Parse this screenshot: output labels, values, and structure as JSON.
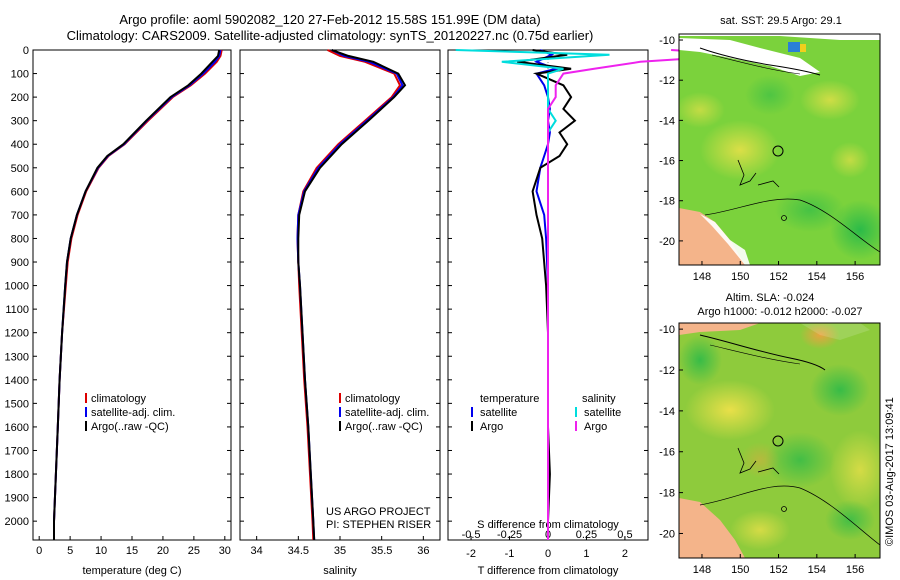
{
  "header": {
    "line1": "Argo profile: aoml 5902082_120 27-Feb-2012 15.58S 151.99E (DM data)",
    "line2": "Climatology: CARS2009. Satellite-adjusted climatology: synTS_20120227.nc (0.75d earlier)"
  },
  "credit": "US ARGO PROJECT",
  "pi": "PI: STEPHEN RISER",
  "imos": "©IMOS 03-Aug-2017 13:09:41",
  "colors": {
    "clim": "#dd0000",
    "sat": "#0000ee",
    "argo": "#000000",
    "sat_s": "#00dddd",
    "argo_s": "#ee22ee"
  },
  "chart_data": [
    {
      "type": "line",
      "xlabel": "temperature (deg C)",
      "ylabel": "",
      "xlim": [
        -1,
        31
      ],
      "ylim": [
        2080,
        0
      ],
      "xticks": [
        0,
        5,
        10,
        15,
        20,
        25,
        30
      ],
      "yticks": [
        0,
        100,
        200,
        300,
        400,
        500,
        600,
        700,
        800,
        900,
        1000,
        1100,
        1200,
        1300,
        1400,
        1500,
        1600,
        1700,
        1800,
        1900,
        2000
      ],
      "legend": [
        "climatology",
        "satellite-adj. clim.",
        "Argo(..raw -QC)"
      ],
      "depth": [
        0,
        25,
        50,
        100,
        150,
        200,
        300,
        400,
        450,
        500,
        600,
        700,
        800,
        900,
        1000,
        1200,
        1400,
        1600,
        1800,
        2000,
        2080
      ],
      "series": [
        {
          "name": "climatology",
          "values": [
            29.5,
            29.3,
            28.7,
            26.8,
            24.5,
            21.6,
            17.6,
            13.8,
            11.2,
            9.6,
            7.6,
            6.2,
            5.2,
            4.6,
            4.3,
            3.7,
            3.3,
            3.0,
            2.7,
            2.4,
            2.4
          ]
        },
        {
          "name": "satellite-adj. clim.",
          "values": [
            29.3,
            29.1,
            28.4,
            26.5,
            24.3,
            21.4,
            17.4,
            13.7,
            11.1,
            9.5,
            7.5,
            6.1,
            5.1,
            4.5,
            4.2,
            3.7,
            3.3,
            3.0,
            2.7,
            2.4,
            2.4
          ]
        },
        {
          "name": "Argo(..raw -QC)",
          "values": [
            29.1,
            28.9,
            28.0,
            26.2,
            24.1,
            21.2,
            17.3,
            13.6,
            11.0,
            9.4,
            7.5,
            6.1,
            5.1,
            4.5,
            4.2,
            3.7,
            3.3,
            3.0,
            2.7,
            2.4,
            2.4
          ]
        }
      ]
    },
    {
      "type": "line",
      "xlabel": "salinity",
      "ylabel": "",
      "xlim": [
        33.8,
        36.2
      ],
      "ylim": [
        2080,
        0
      ],
      "xticks": [
        34,
        34.5,
        35,
        35.5,
        36
      ],
      "legend": [
        "climatology",
        "satellite-adj. clim.",
        "Argo(..raw -QC)"
      ],
      "depth": [
        0,
        25,
        50,
        100,
        150,
        200,
        300,
        400,
        500,
        600,
        700,
        800,
        900,
        1000,
        1200,
        1400,
        1600,
        1800,
        2000,
        2080
      ],
      "series": [
        {
          "name": "climatology",
          "values": [
            34.85,
            35.0,
            35.3,
            35.65,
            35.72,
            35.62,
            35.3,
            34.98,
            34.72,
            34.56,
            34.5,
            34.49,
            34.5,
            34.51,
            34.54,
            34.57,
            34.61,
            34.64,
            34.67,
            34.68
          ]
        },
        {
          "name": "satellite-adj. clim.",
          "values": [
            34.9,
            35.05,
            35.35,
            35.68,
            35.75,
            35.64,
            35.32,
            35.0,
            34.74,
            34.57,
            34.5,
            34.49,
            34.5,
            34.52,
            34.55,
            34.58,
            34.62,
            34.65,
            34.68,
            34.69
          ]
        },
        {
          "name": "Argo(..raw -QC)",
          "values": [
            34.9,
            35.1,
            35.4,
            35.7,
            35.78,
            35.65,
            35.34,
            35.02,
            34.76,
            34.58,
            34.51,
            34.5,
            34.5,
            34.52,
            34.55,
            34.58,
            34.62,
            34.65,
            34.68,
            34.69
          ]
        }
      ]
    },
    {
      "type": "line",
      "xlabel": "T difference from climatology",
      "xlabel2": "S difference from climatology",
      "xlim": [
        -2.6,
        2.6
      ],
      "ylim": [
        2080,
        0
      ],
      "xticks": [
        -2,
        -1,
        0,
        1,
        2
      ],
      "xticks2": [
        -0.5,
        -0.25,
        0,
        0.25,
        0.5
      ],
      "legend_header": [
        "temperature",
        "salinity"
      ],
      "legend": [
        "satellite",
        "Argo",
        "satellite",
        "Argo"
      ],
      "depth": [
        0,
        20,
        50,
        80,
        100,
        150,
        200,
        250,
        300,
        350,
        400,
        450,
        500,
        600,
        700,
        800,
        1000,
        1200,
        1400,
        1600,
        1800,
        2000,
        2080
      ],
      "series": [
        {
          "name": "temperature satellite",
          "values": [
            -0.2,
            0.1,
            -0.3,
            0.2,
            -0.3,
            -0.1,
            0.0,
            0.05,
            0.0,
            0.05,
            0.0,
            -0.1,
            -0.2,
            -0.3,
            -0.1,
            -0.05,
            0.0,
            0.0,
            0.0,
            0.0,
            0.0,
            0.0,
            0.0
          ]
        },
        {
          "name": "temperature Argo",
          "values": [
            -0.4,
            0.5,
            -0.8,
            0.6,
            -0.3,
            0.4,
            0.6,
            0.4,
            0.7,
            0.3,
            0.5,
            0.3,
            -0.2,
            -0.4,
            -0.3,
            -0.15,
            -0.05,
            0.0,
            0.0,
            0.0,
            0.05,
            0.0,
            0.0
          ]
        },
        {
          "name": "salinity satellite",
          "values": [
            -0.6,
            0.4,
            -0.3,
            0.1,
            0.0,
            0.0,
            0.0,
            0.0,
            0.05,
            0.0,
            0.0,
            0.0,
            0.0,
            0.0,
            0.0,
            0.0,
            0.0,
            0.0,
            0.0,
            0.0,
            0.0,
            0.0,
            0.0
          ]
        },
        {
          "name": "salinity Argo",
          "values": [
            0.8,
            1.3,
            0.6,
            0.3,
            0.1,
            0.05,
            0.05,
            0.0,
            0.0,
            0.0,
            0.0,
            0.0,
            0.0,
            0.0,
            0.0,
            0.0,
            0.0,
            0.0,
            0.0,
            0.0,
            0.0,
            0.0,
            0.0
          ]
        }
      ]
    },
    {
      "type": "heatmap",
      "title": "sat. SST: 29.5  Argo: 29.1",
      "xlim": [
        146.8,
        157.3
      ],
      "ylim": [
        -21.2,
        -9.7
      ],
      "xticks": [
        148,
        150,
        152,
        154,
        156
      ],
      "yticks": [
        -10,
        -12,
        -14,
        -16,
        -18,
        -20
      ],
      "argo_position": {
        "lon": 151.99,
        "lat": -15.58
      }
    },
    {
      "type": "heatmap",
      "title_line1": "Altim. SLA: -0.024",
      "title_line2": "Argo h1000: -0.012  h2000: -0.027",
      "xlim": [
        146.8,
        157.3
      ],
      "ylim": [
        -21.2,
        -9.7
      ],
      "xticks": [
        148,
        150,
        152,
        154,
        156
      ],
      "yticks": [
        -10,
        -12,
        -14,
        -16,
        -18,
        -20
      ],
      "argo_position": {
        "lon": 151.99,
        "lat": -15.58
      }
    }
  ]
}
